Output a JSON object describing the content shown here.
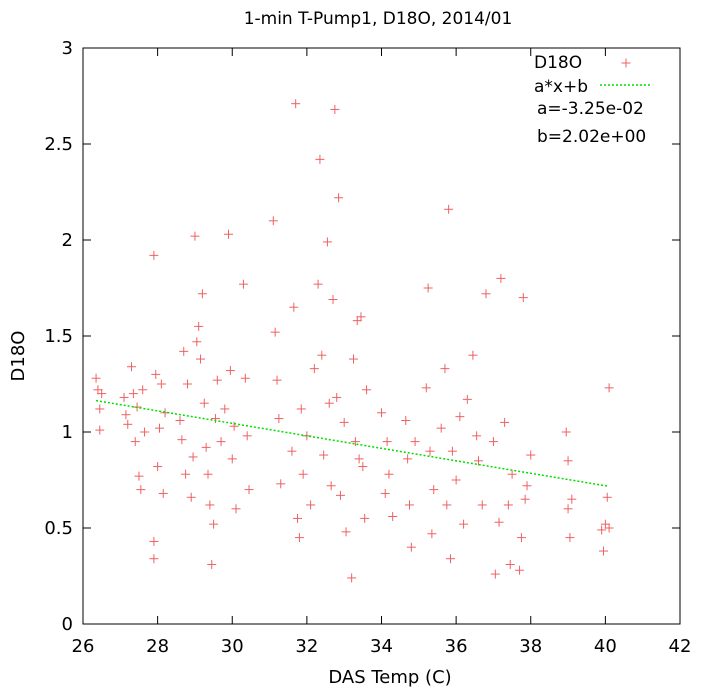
{
  "chart_data": {
    "type": "scatter",
    "title": "1-min T-Pump1, D18O, 2014/01",
    "xlabel": "DAS Temp (C)",
    "ylabel": "D18O",
    "xlim": [
      26,
      42
    ],
    "ylim": [
      0,
      3
    ],
    "xticks": [
      "26",
      "28",
      "30",
      "32",
      "34",
      "36",
      "38",
      "40",
      "42"
    ],
    "yticks": [
      "0",
      "0.5",
      "1",
      "1.5",
      "2",
      "2.5",
      "3"
    ],
    "grid": false,
    "legend_position": "top-right",
    "colors": {
      "points": "#f06060",
      "fit": "#00dd00"
    },
    "series": [
      {
        "name": "D18O",
        "marker": "plus",
        "points": [
          [
            26.35,
            1.28
          ],
          [
            26.4,
            1.22
          ],
          [
            26.45,
            1.01
          ],
          [
            26.45,
            1.12
          ],
          [
            26.5,
            1.2
          ],
          [
            27.1,
            1.18
          ],
          [
            27.15,
            1.09
          ],
          [
            27.2,
            1.04
          ],
          [
            27.3,
            1.34
          ],
          [
            27.35,
            1.2
          ],
          [
            27.4,
            0.95
          ],
          [
            27.45,
            1.13
          ],
          [
            27.5,
            0.77
          ],
          [
            27.55,
            0.7
          ],
          [
            27.6,
            1.22
          ],
          [
            27.65,
            1.0
          ],
          [
            27.9,
            1.92
          ],
          [
            27.9,
            0.43
          ],
          [
            27.9,
            0.34
          ],
          [
            27.95,
            1.3
          ],
          [
            28.0,
            0.82
          ],
          [
            28.05,
            1.02
          ],
          [
            28.1,
            1.25
          ],
          [
            28.15,
            0.68
          ],
          [
            28.2,
            1.1
          ],
          [
            28.6,
            1.06
          ],
          [
            28.65,
            0.96
          ],
          [
            28.7,
            1.42
          ],
          [
            28.75,
            0.78
          ],
          [
            28.8,
            1.25
          ],
          [
            28.9,
            0.66
          ],
          [
            28.95,
            0.87
          ],
          [
            29.0,
            2.02
          ],
          [
            29.05,
            1.47
          ],
          [
            29.1,
            1.55
          ],
          [
            29.15,
            1.38
          ],
          [
            29.2,
            1.72
          ],
          [
            29.25,
            1.15
          ],
          [
            29.3,
            0.92
          ],
          [
            29.35,
            0.78
          ],
          [
            29.4,
            0.62
          ],
          [
            29.45,
            0.31
          ],
          [
            29.5,
            0.52
          ],
          [
            29.55,
            1.07
          ],
          [
            29.6,
            1.27
          ],
          [
            29.7,
            0.95
          ],
          [
            29.8,
            1.12
          ],
          [
            29.9,
            2.03
          ],
          [
            29.95,
            1.32
          ],
          [
            30.0,
            0.86
          ],
          [
            30.05,
            1.03
          ],
          [
            30.1,
            0.6
          ],
          [
            30.3,
            1.77
          ],
          [
            30.35,
            1.28
          ],
          [
            30.4,
            0.98
          ],
          [
            30.45,
            0.7
          ],
          [
            31.1,
            2.1
          ],
          [
            31.15,
            1.52
          ],
          [
            31.2,
            1.27
          ],
          [
            31.25,
            1.07
          ],
          [
            31.3,
            0.73
          ],
          [
            31.6,
            0.9
          ],
          [
            31.65,
            1.65
          ],
          [
            31.7,
            2.71
          ],
          [
            31.75,
            0.55
          ],
          [
            31.8,
            0.45
          ],
          [
            31.85,
            1.12
          ],
          [
            31.9,
            0.78
          ],
          [
            32.0,
            0.98
          ],
          [
            32.1,
            0.62
          ],
          [
            32.2,
            1.33
          ],
          [
            32.3,
            1.77
          ],
          [
            32.35,
            2.42
          ],
          [
            32.4,
            1.4
          ],
          [
            32.45,
            0.88
          ],
          [
            32.55,
            1.99
          ],
          [
            32.6,
            1.15
          ],
          [
            32.65,
            0.72
          ],
          [
            32.7,
            1.69
          ],
          [
            32.75,
            2.68
          ],
          [
            32.8,
            1.18
          ],
          [
            32.85,
            2.22
          ],
          [
            32.9,
            0.67
          ],
          [
            33.0,
            1.05
          ],
          [
            33.05,
            0.48
          ],
          [
            33.2,
            0.24
          ],
          [
            33.25,
            1.38
          ],
          [
            33.3,
            0.95
          ],
          [
            33.35,
            1.58
          ],
          [
            33.4,
            0.86
          ],
          [
            33.45,
            1.6
          ],
          [
            33.5,
            0.82
          ],
          [
            33.55,
            0.55
          ],
          [
            33.6,
            1.22
          ],
          [
            34.0,
            1.1
          ],
          [
            34.1,
            0.68
          ],
          [
            34.15,
            0.95
          ],
          [
            34.2,
            0.78
          ],
          [
            34.3,
            0.56
          ],
          [
            34.65,
            1.06
          ],
          [
            34.7,
            0.86
          ],
          [
            34.75,
            0.62
          ],
          [
            34.8,
            0.4
          ],
          [
            34.9,
            0.95
          ],
          [
            35.2,
            1.23
          ],
          [
            35.25,
            1.75
          ],
          [
            35.3,
            0.9
          ],
          [
            35.35,
            0.47
          ],
          [
            35.4,
            0.7
          ],
          [
            35.6,
            1.02
          ],
          [
            35.7,
            1.33
          ],
          [
            35.75,
            0.62
          ],
          [
            35.8,
            2.16
          ],
          [
            35.85,
            0.34
          ],
          [
            35.9,
            0.9
          ],
          [
            36.0,
            0.75
          ],
          [
            36.1,
            1.08
          ],
          [
            36.2,
            0.52
          ],
          [
            36.3,
            1.17
          ],
          [
            36.45,
            1.4
          ],
          [
            36.55,
            0.98
          ],
          [
            36.6,
            0.85
          ],
          [
            36.7,
            0.62
          ],
          [
            36.8,
            1.72
          ],
          [
            37.0,
            0.95
          ],
          [
            37.05,
            0.26
          ],
          [
            37.15,
            0.53
          ],
          [
            37.2,
            1.8
          ],
          [
            37.3,
            1.05
          ],
          [
            37.4,
            0.62
          ],
          [
            37.45,
            0.31
          ],
          [
            37.5,
            0.78
          ],
          [
            37.7,
            0.28
          ],
          [
            37.75,
            0.45
          ],
          [
            37.8,
            1.7
          ],
          [
            37.85,
            0.65
          ],
          [
            37.9,
            0.72
          ],
          [
            38.0,
            0.88
          ],
          [
            38.95,
            1.0
          ],
          [
            39.0,
            0.85
          ],
          [
            39.0,
            0.6
          ],
          [
            39.05,
            0.45
          ],
          [
            39.1,
            0.65
          ],
          [
            39.9,
            0.49
          ],
          [
            39.95,
            0.38
          ],
          [
            40.0,
            0.52
          ],
          [
            40.05,
            0.66
          ],
          [
            40.1,
            1.23
          ],
          [
            40.1,
            0.5
          ]
        ]
      },
      {
        "name": "a*x+b",
        "type": "line",
        "style": "dotted",
        "a": -0.0325,
        "b": 2.02,
        "x_range": [
          26.35,
          40.05
        ]
      }
    ],
    "annotations": {
      "a_text": "a=-3.25e-02",
      "b_text": "b=2.02e+00"
    }
  }
}
